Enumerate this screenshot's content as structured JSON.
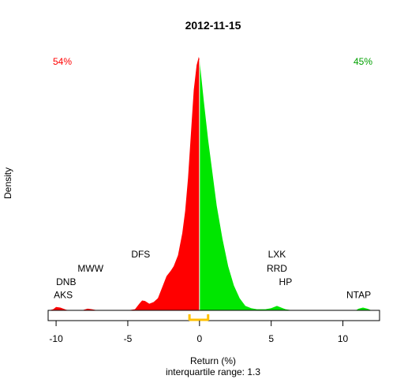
{
  "chart_data": {
    "type": "area",
    "title": "2012-11-15",
    "xlabel": "Return (%)",
    "ylabel": "Density",
    "subtitle": "interquartile range: 1.3",
    "xlim": [
      -10.5,
      12.5
    ],
    "x_ticks": [
      -10,
      -5,
      0,
      5,
      10
    ],
    "x_tick_labels": [
      "-10",
      "-5",
      "0",
      "5",
      "10"
    ],
    "y_max_density": 0.46,
    "pct_negative": "54%",
    "pct_positive": "45%",
    "colors": {
      "negative": "#ff0000",
      "positive": "#00e600",
      "iqr_bracket": "#ffc000",
      "baseline": "#bebebe"
    },
    "interquartile_range": [
      -0.7,
      0.6
    ],
    "density": [
      [
        -10.5,
        0.0
      ],
      [
        -10.2,
        0.002
      ],
      [
        -10.0,
        0.006
      ],
      [
        -9.7,
        0.005
      ],
      [
        -9.3,
        0.001
      ],
      [
        -9.0,
        0.0
      ],
      [
        -8.2,
        0.0
      ],
      [
        -7.8,
        0.003
      ],
      [
        -7.5,
        0.002
      ],
      [
        -7.1,
        0.0
      ],
      [
        -5.0,
        0.0
      ],
      [
        -4.5,
        0.002
      ],
      [
        -4.2,
        0.012
      ],
      [
        -4.0,
        0.018
      ],
      [
        -3.8,
        0.017
      ],
      [
        -3.5,
        0.012
      ],
      [
        -3.2,
        0.015
      ],
      [
        -2.9,
        0.022
      ],
      [
        -2.6,
        0.042
      ],
      [
        -2.3,
        0.062
      ],
      [
        -2.0,
        0.072
      ],
      [
        -1.8,
        0.08
      ],
      [
        -1.5,
        0.1
      ],
      [
        -1.2,
        0.14
      ],
      [
        -1.0,
        0.18
      ],
      [
        -0.8,
        0.24
      ],
      [
        -0.6,
        0.32
      ],
      [
        -0.4,
        0.4
      ],
      [
        -0.2,
        0.445
      ],
      [
        -0.05,
        0.46
      ],
      [
        0.0,
        0.455
      ],
      [
        0.1,
        0.43
      ],
      [
        0.3,
        0.38
      ],
      [
        0.6,
        0.31
      ],
      [
        0.9,
        0.25
      ],
      [
        1.2,
        0.19
      ],
      [
        1.6,
        0.13
      ],
      [
        2.0,
        0.08
      ],
      [
        2.4,
        0.045
      ],
      [
        2.8,
        0.022
      ],
      [
        3.2,
        0.008
      ],
      [
        3.6,
        0.004
      ],
      [
        4.0,
        0.002
      ],
      [
        4.6,
        0.002
      ],
      [
        5.0,
        0.004
      ],
      [
        5.4,
        0.008
      ],
      [
        5.7,
        0.005
      ],
      [
        6.0,
        0.002
      ],
      [
        6.5,
        0.0
      ],
      [
        10.9,
        0.0
      ],
      [
        11.1,
        0.003
      ],
      [
        11.4,
        0.005
      ],
      [
        11.7,
        0.003
      ],
      [
        12.0,
        0.0
      ],
      [
        12.5,
        0.0
      ]
    ],
    "annotations": [
      {
        "label": "AKS",
        "x": -9.5,
        "y": 0.022
      },
      {
        "label": "DNB",
        "x": -9.3,
        "y": 0.046
      },
      {
        "label": "MWW",
        "x": -7.6,
        "y": 0.07
      },
      {
        "label": "DFS",
        "x": -4.1,
        "y": 0.096
      },
      {
        "label": "LXK",
        "x": 5.4,
        "y": 0.096
      },
      {
        "label": "RRD",
        "x": 5.4,
        "y": 0.07
      },
      {
        "label": "HP",
        "x": 6.0,
        "y": 0.046
      },
      {
        "label": "NTAP",
        "x": 11.1,
        "y": 0.022
      }
    ]
  }
}
